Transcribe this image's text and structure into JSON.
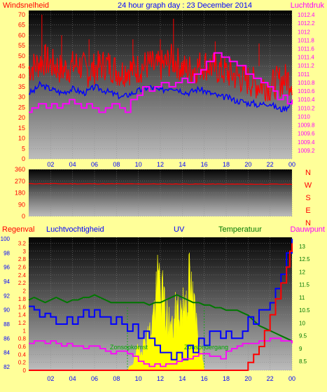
{
  "colors": {
    "background": "#FFFF99",
    "wind": "#FF0000",
    "pressure": "#FF00FF",
    "temperature": "#007700",
    "humidity": "#0000FF",
    "uv": "#FFFF00",
    "rain": "#FF0000",
    "dewpoint": "#FF00FF",
    "direction": "#FF0000"
  },
  "chart_data": [
    {
      "type": "line",
      "title": "24 hour graph day : 23 December 2014",
      "left_axis_label": "Windsnelheid",
      "right_axis_label": "Luchtdruk",
      "x_ticks": [
        "02",
        "04",
        "06",
        "08",
        "10",
        "12",
        "14",
        "16",
        "18",
        "20",
        "22",
        "00"
      ],
      "left_ticks": [
        "0",
        "5",
        "10",
        "15",
        "20",
        "25",
        "30",
        "35",
        "40",
        "45",
        "50",
        "55",
        "60",
        "65",
        "70"
      ],
      "right_ticks": [
        "1009.2",
        "1009.4",
        "1009.6",
        "1009.8",
        "1010",
        "1010.2",
        "1010.4",
        "1010.6",
        "1010.8",
        "1011",
        "1011.2",
        "1011.4",
        "1011.6",
        "1011.8",
        "1012",
        "1012.2",
        "1012.4"
      ],
      "ylim_left": [
        0,
        72
      ],
      "ylim_right": [
        1009.0,
        1012.5
      ],
      "xlim_hours": [
        0,
        24
      ],
      "grid": true,
      "series": [
        {
          "axis": "left",
          "style": "gust",
          "color": "#FF0000",
          "x": [
            0,
            0.5,
            1,
            1.5,
            2,
            2.5,
            3,
            3.5,
            4,
            4.5,
            5,
            5.5,
            6,
            6.5,
            7,
            7.5,
            8,
            8.5,
            9,
            9.5,
            10,
            10.5,
            11,
            11.5,
            12,
            12.5,
            13,
            13.5,
            14,
            14.5,
            15,
            15.5,
            16,
            16.5,
            17,
            17.5,
            18,
            18.5,
            19,
            19.5,
            20,
            20.5,
            21,
            21.5,
            22,
            22.5,
            23,
            23.5,
            24
          ],
          "y": [
            44,
            45,
            47,
            48,
            46,
            45,
            43,
            44,
            45,
            46,
            44,
            42,
            44,
            45,
            46,
            45,
            43,
            42,
            44,
            43,
            44,
            45,
            46,
            44,
            45,
            46,
            48,
            47,
            44,
            43,
            44,
            45,
            46,
            45,
            44,
            43,
            42,
            41,
            40,
            39,
            38,
            37,
            36,
            36,
            35,
            37,
            38,
            39,
            38
          ],
          "peaks": [
            [
              1.2,
              70
            ],
            [
              13.2,
              68
            ],
            [
              3.0,
              60
            ],
            [
              5.5,
              58
            ],
            [
              9.5,
              58
            ],
            [
              17.0,
              57
            ],
            [
              12.0,
              58
            ],
            [
              21.0,
              56
            ]
          ]
        },
        {
          "axis": "left",
          "color": "#0000FF",
          "x": [
            0,
            0.5,
            1,
            1.5,
            2,
            2.5,
            3,
            3.5,
            4,
            4.5,
            5,
            5.5,
            6,
            6.5,
            7,
            7.5,
            8,
            8.5,
            9,
            9.5,
            10,
            10.5,
            11,
            11.5,
            12,
            12.5,
            13,
            13.5,
            14,
            14.5,
            15,
            15.5,
            16,
            16.5,
            17,
            17.5,
            18,
            18.5,
            19,
            19.5,
            20,
            20.5,
            21,
            21.5,
            22,
            22.5,
            23,
            23.5,
            24
          ],
          "y": [
            32,
            33,
            36,
            35,
            34,
            33,
            32,
            33,
            34,
            33,
            32,
            33,
            35,
            34,
            33,
            32,
            31,
            30,
            31,
            32,
            33,
            34,
            35,
            34,
            33,
            34,
            35,
            34,
            33,
            32,
            33,
            34,
            33,
            32,
            31,
            30,
            30,
            29,
            28,
            28,
            27,
            27,
            26,
            27,
            27,
            25,
            24,
            25,
            28
          ]
        },
        {
          "axis": "right",
          "color": "#FF00FF",
          "x": [
            0,
            0.3,
            0.9,
            1.6,
            2.1,
            2.6,
            3.1,
            3.7,
            4.2,
            4.8,
            5.3,
            5.8,
            6.4,
            7.0,
            7.6,
            8.3,
            8.8,
            9.3,
            9.9,
            10.4,
            11.0,
            11.5,
            12.1,
            12.8,
            13.4,
            14.0,
            14.5,
            15.1,
            15.7,
            16.2,
            16.9,
            17.6,
            18.3,
            19.0,
            19.8,
            20.5,
            21.2,
            21.8,
            22.3,
            22.7,
            23.2,
            23.6,
            24
          ],
          "y": [
            1010.1,
            1010.2,
            1010.3,
            1010.2,
            1010.3,
            1010.2,
            1010.3,
            1010.4,
            1010.3,
            1010.2,
            1010.3,
            1010.2,
            1010.1,
            1010.2,
            1010.3,
            1010.2,
            1010.1,
            1010.4,
            1010.5,
            1010.7,
            1010.6,
            1010.7,
            1010.8,
            1010.7,
            1010.8,
            1010.9,
            1010.8,
            1011.0,
            1011.1,
            1011.3,
            1011.5,
            1011.4,
            1011.3,
            1011.2,
            1011.0,
            1010.9,
            1010.8,
            1010.7,
            1010.6,
            1010.4,
            1010.5,
            1010.3,
            1010.4
          ]
        }
      ]
    },
    {
      "type": "line",
      "y_ticks": [
        "0",
        "90",
        "180",
        "270",
        "360"
      ],
      "ylim": [
        0,
        360
      ],
      "compass_labels": [
        "N",
        "W",
        "S",
        "E",
        "N"
      ],
      "x": [
        0,
        24
      ],
      "y": [
        250,
        246
      ]
    },
    {
      "type": "line",
      "labels": {
        "rain": "Regenval",
        "humidity": "Luchtvochtigheid",
        "uv": "UV",
        "temperature": "Temperatuur",
        "dewpoint": "Dauwpunt"
      },
      "annotations": [
        "Zonsopkomst",
        "Zonsondergang"
      ],
      "x_ticks": [
        "02",
        "04",
        "06",
        "08",
        "10",
        "12",
        "14",
        "16",
        "18",
        "20",
        "22",
        "00"
      ],
      "rain_ticks": [
        "0",
        "0.2",
        "0.4",
        "0.6",
        "0.8",
        "1",
        "1.2",
        "1.4",
        "1.6",
        "1.8",
        "2",
        "2.2",
        "2.4",
        "2.6",
        "2.8",
        "3",
        "3.2"
      ],
      "humidity_ticks": [
        "82",
        "84",
        "86",
        "88",
        "90",
        "92",
        "94",
        "96",
        "98",
        "100"
      ],
      "temperature_ticks": [
        "8.5",
        "9",
        "9.5",
        "10",
        "10.5",
        "11",
        "11.5",
        "12",
        "12.5",
        "13"
      ],
      "ylim_rain": [
        0,
        3.35
      ],
      "ylim_humidity": [
        81.5,
        100.2
      ],
      "ylim_temp": [
        8.15,
        13.35
      ],
      "series": [
        {
          "name": "Temperatuur",
          "axis": "temperature",
          "color": "#007700",
          "x": [
            0,
            0.5,
            1,
            1.5,
            2,
            2.5,
            3,
            3.5,
            4,
            4.5,
            5,
            5.5,
            6,
            6.5,
            7,
            7.5,
            8,
            8.5,
            9,
            9.5,
            10,
            10.5,
            11,
            11.5,
            12,
            12.5,
            13,
            13.5,
            14,
            14.5,
            15,
            15.5,
            16,
            16.5,
            17,
            17.5,
            18,
            18.5,
            19,
            19.5,
            20,
            20.5,
            21,
            21.5,
            22,
            22.5,
            23,
            23.5,
            24
          ],
          "y": [
            10.9,
            11.0,
            10.9,
            10.8,
            10.9,
            11.0,
            10.9,
            10.8,
            10.9,
            10.9,
            11.0,
            11.0,
            11.1,
            11.0,
            10.9,
            10.8,
            10.8,
            10.8,
            10.8,
            10.8,
            10.8,
            10.8,
            10.7,
            10.8,
            10.8,
            10.9,
            11.0,
            11.1,
            11.0,
            10.9,
            10.8,
            10.8,
            10.7,
            10.7,
            10.6,
            10.6,
            10.5,
            10.5,
            10.5,
            10.4,
            10.3,
            10.1,
            9.9,
            9.8,
            9.7,
            9.6,
            9.5,
            9.4,
            9.3
          ]
        },
        {
          "name": "Luchtvochtigheid",
          "axis": "humidity",
          "color": "#0000FF",
          "x": [
            0,
            0.5,
            1,
            1.5,
            2,
            2.5,
            3,
            3.5,
            4,
            4.5,
            5,
            5.5,
            6,
            6.5,
            7,
            7.5,
            8,
            8.5,
            9,
            9.5,
            10,
            10.5,
            11,
            11.5,
            12,
            12.5,
            13,
            13.5,
            14,
            14.5,
            15,
            15.5,
            16,
            16.5,
            17,
            17.5,
            18,
            18.5,
            19,
            19.5,
            20,
            20.5,
            21,
            21.5,
            22,
            22.5,
            23,
            23.5,
            24
          ],
          "y": [
            90.5,
            90,
            89,
            89.5,
            89,
            88,
            88,
            89,
            88,
            89,
            90,
            89,
            90,
            89,
            89,
            88,
            89,
            88,
            87,
            88,
            86,
            87,
            86,
            85,
            84,
            84,
            83,
            84,
            83,
            85,
            84,
            86,
            85,
            87,
            87,
            86,
            87,
            86,
            86,
            87,
            89,
            88,
            90,
            90,
            91,
            93,
            95,
            98,
            100
          ]
        },
        {
          "name": "Dauwpunt",
          "axis": "temperature",
          "color": "#FF00FF",
          "x": [
            0,
            0.5,
            1,
            1.5,
            2,
            2.5,
            3,
            3.5,
            4,
            4.5,
            5,
            5.5,
            6,
            6.5,
            7,
            7.5,
            8,
            8.5,
            9,
            9.5,
            10,
            10.5,
            11,
            11.5,
            12,
            12.5,
            13,
            13.5,
            14,
            14.5,
            15,
            15.5,
            16,
            16.5,
            17,
            17.5,
            18,
            18.5,
            19,
            19.5,
            20,
            20.5,
            21,
            21.5,
            22,
            22.5,
            23,
            23.5,
            24
          ],
          "y": [
            9.2,
            9.3,
            9.3,
            9.2,
            9.3,
            9.2,
            9.1,
            9.2,
            9.1,
            9.1,
            9.0,
            9.1,
            9.1,
            9.0,
            8.9,
            8.8,
            8.9,
            8.9,
            8.8,
            8.7,
            8.5,
            8.4,
            8.3,
            8.4,
            8.3,
            8.4,
            8.4,
            8.5,
            8.6,
            8.6,
            8.7,
            8.8,
            8.8,
            8.7,
            8.7,
            8.6,
            8.9,
            9.0,
            9.1,
            9.2,
            9.2,
            9.2,
            9.3,
            9.3,
            9.4,
            9.4,
            9.3,
            9.3,
            9.2
          ]
        },
        {
          "name": "Regenval",
          "axis": "rain",
          "color": "#FF0000",
          "x": [
            0,
            19.5,
            20,
            20.5,
            21,
            21.5,
            22,
            22.5,
            23,
            23.5,
            23.8,
            24
          ],
          "y": [
            0,
            0,
            0.2,
            0.4,
            0.6,
            1.0,
            1.4,
            1.8,
            2.2,
            2.6,
            3.0,
            3.2
          ]
        },
        {
          "name": "UV",
          "axis": "rain",
          "color": "#FFFF00",
          "x": [
            9.0,
            9.5,
            10.0,
            10.5,
            11.0,
            11.3,
            11.6,
            11.9,
            12.2,
            12.5,
            12.8,
            13.1,
            13.4,
            13.7,
            14.0,
            14.3,
            14.6,
            14.9,
            15.2,
            15.5,
            15.8,
            16.0
          ],
          "y": [
            0,
            0.2,
            0.5,
            0.7,
            0.9,
            1.3,
            1.8,
            2.3,
            1.8,
            1.4,
            1.2,
            1.0,
            1.4,
            1.6,
            1.5,
            1.9,
            2.2,
            1.8,
            1.3,
            0.8,
            0.4,
            0
          ]
        }
      ],
      "sunrise_hour": 9.0,
      "sunset_hour": 16.0
    }
  ]
}
